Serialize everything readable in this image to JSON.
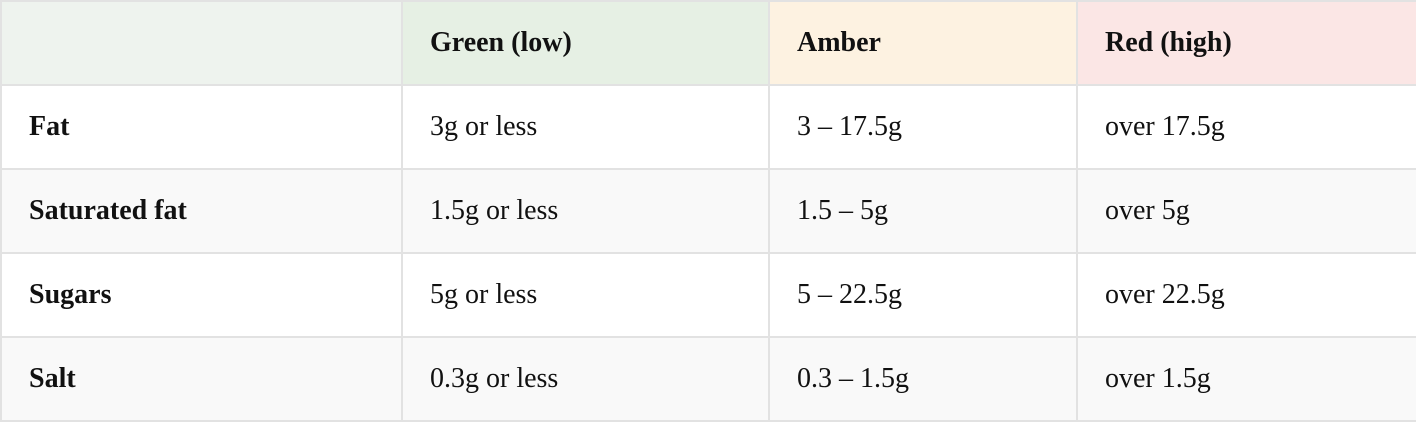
{
  "table": {
    "headers": [
      "Green (low)",
      "Amber",
      "Red (high)"
    ],
    "rows": [
      [
        "Fat",
        "3g or less",
        "3 – 17.5g",
        "over 17.5g"
      ],
      [
        "Saturated fat",
        "1.5g or less",
        "1.5 – 5g",
        "over 5g"
      ],
      [
        "Sugars",
        "5g or less",
        "5 – 22.5g",
        "over 22.5g"
      ],
      [
        "Salt",
        "0.3g or less",
        "0.3 – 1.5g",
        "over 1.5g"
      ]
    ]
  }
}
